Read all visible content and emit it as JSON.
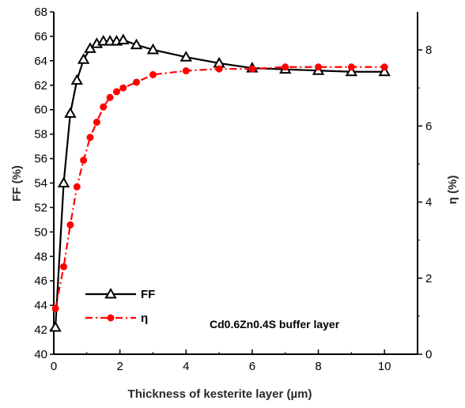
{
  "chart_data": {
    "type": "line",
    "title": "",
    "xlabel": "Thickness of kesterite layer (µm)",
    "ylabel_left": "FF (%)",
    "ylabel_right": "η (%)",
    "xlim": [
      0,
      11
    ],
    "ylim_left": [
      40,
      68
    ],
    "ylim_right": [
      0,
      9
    ],
    "x_ticks": [
      0,
      2,
      4,
      6,
      8,
      10
    ],
    "y_left_ticks": [
      40,
      42,
      44,
      46,
      48,
      50,
      52,
      54,
      56,
      58,
      60,
      62,
      64,
      66,
      68
    ],
    "y_right_ticks": [
      0,
      2,
      4,
      6,
      8
    ],
    "grid": false,
    "legend_position": "bottom-left",
    "annotation": "Cd0.6Zn0.4S buffer layer",
    "series": [
      {
        "name": "FF",
        "axis": "left",
        "color": "#000000",
        "marker": "triangle-open",
        "line": "solid",
        "x": [
          0.05,
          0.3,
          0.5,
          0.7,
          0.9,
          1.1,
          1.3,
          1.5,
          1.7,
          1.9,
          2.1,
          2.5,
          3.0,
          4.0,
          5.0,
          6.0,
          7.0,
          8.0,
          9.0,
          10.0
        ],
        "values": [
          42.2,
          54.0,
          59.7,
          62.4,
          64.1,
          65.0,
          65.4,
          65.6,
          65.6,
          65.6,
          65.7,
          65.3,
          64.9,
          64.3,
          63.8,
          63.4,
          63.3,
          63.2,
          63.1,
          63.1
        ]
      },
      {
        "name": "η",
        "axis": "right",
        "color": "#ff0000",
        "marker": "circle-filled",
        "line": "dash-dot",
        "x": [
          0.05,
          0.3,
          0.5,
          0.7,
          0.9,
          1.1,
          1.3,
          1.5,
          1.7,
          1.9,
          2.1,
          2.5,
          3.0,
          4.0,
          5.0,
          6.0,
          7.0,
          8.0,
          9.0,
          10.0
        ],
        "values": [
          1.2,
          2.3,
          3.4,
          4.4,
          5.1,
          5.7,
          6.1,
          6.5,
          6.75,
          6.9,
          7.0,
          7.15,
          7.35,
          7.45,
          7.5,
          7.5,
          7.55,
          7.55,
          7.55,
          7.55
        ]
      }
    ]
  }
}
